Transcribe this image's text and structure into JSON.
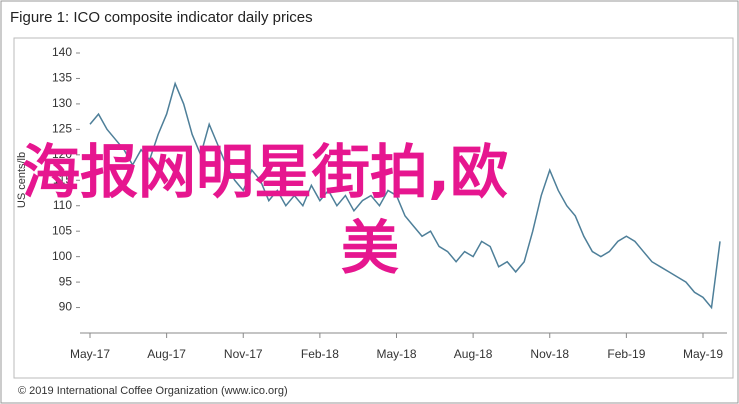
{
  "chart_data": {
    "type": "line",
    "title": "Figure 1: ICO composite indicator daily prices",
    "y_label": "US cents/lb",
    "footer": "© 2019 International Coffee Organization (www.ico.org)",
    "overlay_text": [
      "海报网明星街拍,欧",
      "美"
    ],
    "categories": [
      "May-17",
      null,
      null,
      null,
      null,
      null,
      null,
      null,
      null,
      "Aug-17",
      null,
      null,
      null,
      null,
      null,
      null,
      null,
      null,
      "Nov-17",
      null,
      null,
      null,
      null,
      null,
      null,
      null,
      null,
      "Feb-18",
      null,
      null,
      null,
      null,
      null,
      null,
      null,
      null,
      "May-18",
      null,
      null,
      null,
      null,
      null,
      null,
      null,
      null,
      "Aug-18",
      null,
      null,
      null,
      null,
      null,
      null,
      null,
      null,
      "Nov-18",
      null,
      null,
      null,
      null,
      null,
      null,
      null,
      null,
      "Feb-19",
      null,
      null,
      null,
      null,
      null,
      null,
      null,
      null,
      "May-19",
      null,
      null
    ],
    "series": [
      {
        "name": "ICO composite indicator",
        "color": "#4e7f99",
        "values": [
          126,
          128,
          125,
          123,
          121,
          118,
          121,
          119,
          124,
          128,
          134,
          130,
          124,
          120,
          126,
          122,
          118,
          115,
          113,
          117,
          115,
          111,
          113,
          110,
          112,
          110,
          114,
          111,
          113,
          110,
          112,
          109,
          111,
          112,
          110,
          113,
          112,
          108,
          106,
          104,
          105,
          102,
          101,
          99,
          101,
          100,
          103,
          102,
          98,
          99,
          97,
          99,
          105,
          112,
          117,
          113,
          110,
          108,
          104,
          101,
          100,
          101,
          103,
          104,
          103,
          101,
          99,
          98,
          97,
          96,
          95,
          93,
          92,
          90,
          103
        ]
      }
    ],
    "ylim": [
      85,
      140
    ],
    "yticks": [
      90,
      95,
      100,
      105,
      110,
      115,
      120,
      125,
      130,
      135,
      140
    ]
  }
}
